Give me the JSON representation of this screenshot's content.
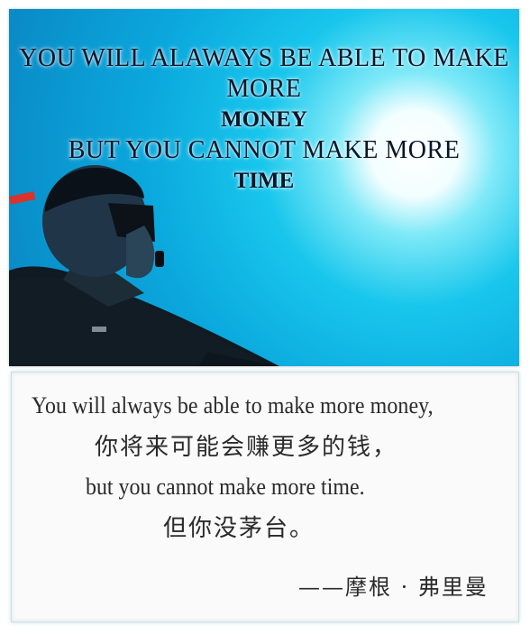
{
  "image": {
    "quote_overlay": {
      "line1": "YOU WILL ALAWAYS BE ABLE TO MAKE MORE",
      "line2": "MONEY",
      "line3": "BUT YOU CANNOT MAKE MORE",
      "line4": "TIME"
    }
  },
  "card": {
    "english_line1": "You will always be able to make more money,",
    "chinese_line1": "你将来可能会赚更多的钱，",
    "english_line2": "but you cannot make more time.",
    "chinese_line2": "但你没茅台。",
    "signature": "——摩根 · 弗里曼"
  },
  "colors": {
    "water_light": "#7fe9f8",
    "water_mid": "#18c6ec",
    "water_deep": "#0a82c0",
    "text_dark": "#06162a",
    "card_text": "#2a2a2a"
  }
}
